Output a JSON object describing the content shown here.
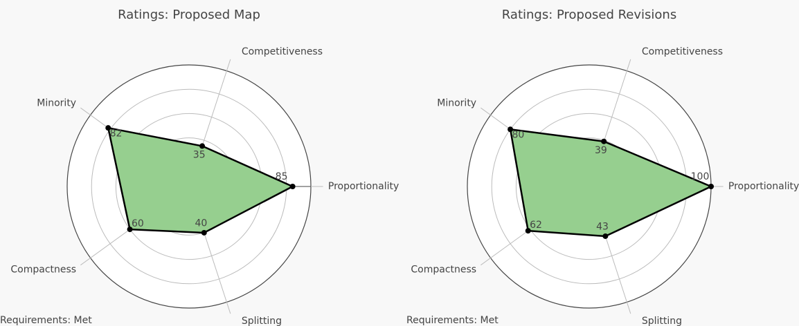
{
  "chart_data": [
    {
      "type": "radar",
      "title": "Ratings: Proposed Map",
      "categories": [
        "Proportionality",
        "Competitiveness",
        "Minority",
        "Compactness",
        "Splitting"
      ],
      "values": [
        85,
        35,
        82,
        60,
        40
      ],
      "color": "#96cf8f",
      "rlim": [
        0,
        100
      ],
      "rticks": [
        20,
        40,
        60,
        80,
        100
      ],
      "annotation": "Requirements: Met"
    },
    {
      "type": "radar",
      "title": "Ratings: Proposed Revisions",
      "categories": [
        "Proportionality",
        "Competitiveness",
        "Minority",
        "Compactness",
        "Splitting"
      ],
      "values": [
        100,
        39,
        80,
        62,
        43
      ],
      "color": "#96cf8f",
      "rlim": [
        0,
        100
      ],
      "rticks": [
        20,
        40,
        60,
        80,
        100
      ],
      "annotation": "Requirements: Met"
    }
  ]
}
